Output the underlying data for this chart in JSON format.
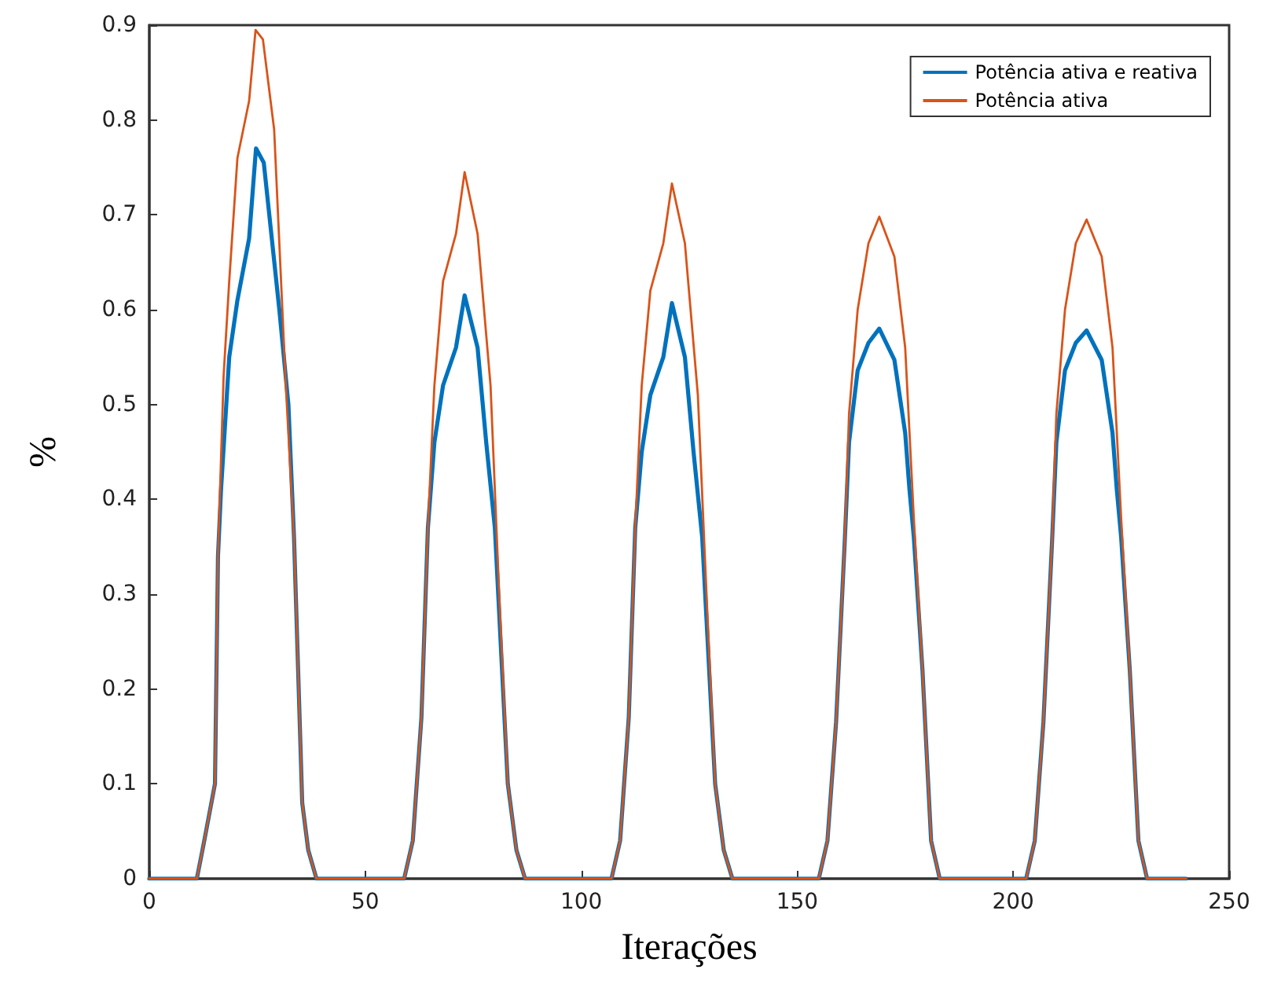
{
  "chart_data": {
    "type": "line",
    "xlabel": "Iterações",
    "ylabel": "%",
    "xlim": [
      0,
      250
    ],
    "xticks": [
      0,
      50,
      100,
      150,
      200,
      250
    ],
    "ylim": [
      0,
      0.9
    ],
    "yticks": [
      0,
      0.1,
      0.2,
      0.3,
      0.4,
      0.5,
      0.6,
      0.7,
      0.8,
      0.9
    ],
    "grid": false,
    "legend": "top right",
    "marker": "none",
    "line_style": "solid",
    "series": [
      {
        "name": "Potência ativa e reativa",
        "color": "#0072bd",
        "x": [
          0,
          11,
          12.6,
          15.2,
          15.9,
          16.6,
          18.5,
          20.4,
          23.1,
          24.7,
          26.5,
          30.1,
          32.2,
          33.5,
          35.4,
          36.8,
          38.7,
          59,
          61,
          63,
          64.5,
          66,
          68,
          71,
          73,
          76,
          78,
          80,
          83,
          85,
          87,
          107,
          109,
          111,
          112.5,
          114,
          116,
          119,
          121,
          124,
          126,
          128,
          131,
          133,
          135,
          155,
          157,
          159,
          161,
          162,
          164,
          166.5,
          169,
          172.5,
          175,
          176,
          177,
          179,
          181,
          183,
          203,
          205,
          207,
          209,
          210,
          212,
          214.5,
          217,
          220.5,
          223,
          224,
          225,
          227,
          229,
          231,
          240
        ],
        "values": [
          0,
          0,
          0.037,
          0.1,
          0.34,
          0.41,
          0.55,
          0.61,
          0.675,
          0.77,
          0.755,
          0.6,
          0.5,
          0.36,
          0.08,
          0.03,
          0,
          0,
          0.04,
          0.17,
          0.37,
          0.46,
          0.52,
          0.56,
          0.615,
          0.56,
          0.46,
          0.37,
          0.1,
          0.03,
          0,
          0,
          0.04,
          0.17,
          0.37,
          0.45,
          0.51,
          0.55,
          0.607,
          0.55,
          0.45,
          0.36,
          0.1,
          0.03,
          0,
          0,
          0.04,
          0.165,
          0.355,
          0.46,
          0.536,
          0.565,
          0.58,
          0.547,
          0.47,
          0.41,
          0.36,
          0.22,
          0.04,
          0,
          0,
          0.04,
          0.165,
          0.355,
          0.46,
          0.536,
          0.565,
          0.578,
          0.547,
          0.47,
          0.41,
          0.36,
          0.22,
          0.04,
          0,
          0
        ]
      },
      {
        "name": "Potência ativa",
        "color": "#d95319",
        "x": [
          0,
          11,
          12.6,
          15.2,
          15.9,
          17.2,
          18.5,
          20.4,
          23.1,
          24.6,
          26.3,
          28.9,
          31.6,
          33.5,
          35.4,
          36.8,
          38.7,
          59,
          61,
          63,
          64.5,
          66,
          68,
          71,
          73,
          76,
          79,
          81,
          83,
          85,
          87,
          107,
          109,
          111,
          112.5,
          114,
          116,
          119,
          121,
          124,
          127,
          129,
          131,
          133,
          135,
          155,
          157,
          159,
          161,
          162,
          164,
          166.5,
          169,
          172.5,
          175,
          177,
          179,
          181,
          183,
          203,
          205,
          207,
          209,
          210,
          212,
          214.5,
          217,
          220.5,
          223,
          225,
          227,
          229,
          231,
          240
        ],
        "values": [
          0,
          0,
          0.037,
          0.1,
          0.34,
          0.53,
          0.63,
          0.76,
          0.82,
          0.895,
          0.885,
          0.79,
          0.52,
          0.36,
          0.08,
          0.03,
          0,
          0,
          0.04,
          0.17,
          0.37,
          0.52,
          0.63,
          0.68,
          0.745,
          0.68,
          0.52,
          0.3,
          0.1,
          0.03,
          0,
          0,
          0.04,
          0.17,
          0.37,
          0.52,
          0.62,
          0.67,
          0.733,
          0.67,
          0.51,
          0.3,
          0.1,
          0.03,
          0,
          0,
          0.04,
          0.165,
          0.355,
          0.49,
          0.6,
          0.67,
          0.698,
          0.656,
          0.56,
          0.38,
          0.22,
          0.04,
          0,
          0,
          0.04,
          0.165,
          0.355,
          0.49,
          0.6,
          0.67,
          0.695,
          0.656,
          0.56,
          0.38,
          0.22,
          0.04,
          0,
          0
        ]
      }
    ]
  }
}
